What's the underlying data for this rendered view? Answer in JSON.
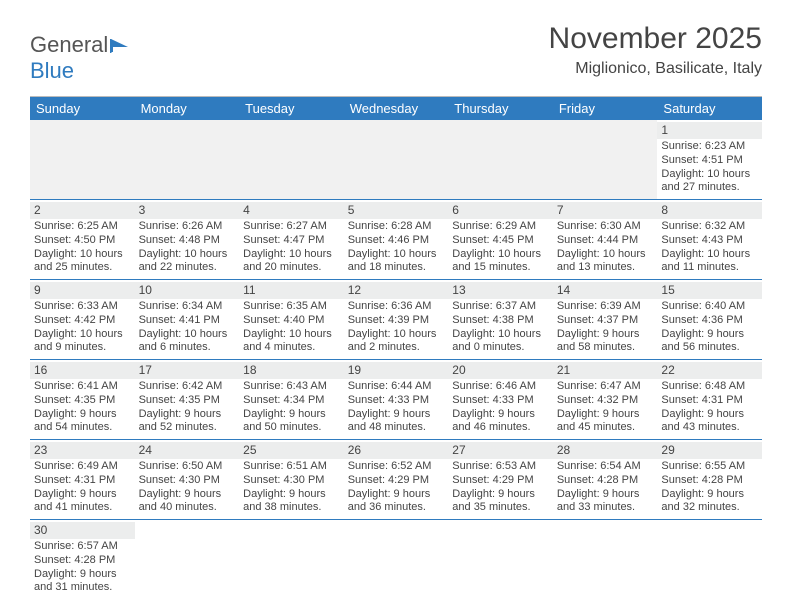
{
  "logo": {
    "text1": "General",
    "text2": "Blue"
  },
  "header": {
    "month_title": "November 2025",
    "location": "Miglionico, Basilicate, Italy"
  },
  "colors": {
    "header_bg": "#2f7bbf",
    "divider": "#2f7bbf",
    "cell_numbar": "#eceded",
    "blank_bg": "#f1f1f1"
  },
  "calendar": {
    "day_names": [
      "Sunday",
      "Monday",
      "Tuesday",
      "Wednesday",
      "Thursday",
      "Friday",
      "Saturday"
    ],
    "weeks": [
      [
        {
          "blank": true
        },
        {
          "blank": true
        },
        {
          "blank": true
        },
        {
          "blank": true
        },
        {
          "blank": true
        },
        {
          "blank": true
        },
        {
          "num": "1",
          "sunrise": "Sunrise: 6:23 AM",
          "sunset": "Sunset: 4:51 PM",
          "daylight1": "Daylight: 10 hours",
          "daylight2": "and 27 minutes."
        }
      ],
      [
        {
          "num": "2",
          "sunrise": "Sunrise: 6:25 AM",
          "sunset": "Sunset: 4:50 PM",
          "daylight1": "Daylight: 10 hours",
          "daylight2": "and 25 minutes."
        },
        {
          "num": "3",
          "sunrise": "Sunrise: 6:26 AM",
          "sunset": "Sunset: 4:48 PM",
          "daylight1": "Daylight: 10 hours",
          "daylight2": "and 22 minutes."
        },
        {
          "num": "4",
          "sunrise": "Sunrise: 6:27 AM",
          "sunset": "Sunset: 4:47 PM",
          "daylight1": "Daylight: 10 hours",
          "daylight2": "and 20 minutes."
        },
        {
          "num": "5",
          "sunrise": "Sunrise: 6:28 AM",
          "sunset": "Sunset: 4:46 PM",
          "daylight1": "Daylight: 10 hours",
          "daylight2": "and 18 minutes."
        },
        {
          "num": "6",
          "sunrise": "Sunrise: 6:29 AM",
          "sunset": "Sunset: 4:45 PM",
          "daylight1": "Daylight: 10 hours",
          "daylight2": "and 15 minutes."
        },
        {
          "num": "7",
          "sunrise": "Sunrise: 6:30 AM",
          "sunset": "Sunset: 4:44 PM",
          "daylight1": "Daylight: 10 hours",
          "daylight2": "and 13 minutes."
        },
        {
          "num": "8",
          "sunrise": "Sunrise: 6:32 AM",
          "sunset": "Sunset: 4:43 PM",
          "daylight1": "Daylight: 10 hours",
          "daylight2": "and 11 minutes."
        }
      ],
      [
        {
          "num": "9",
          "sunrise": "Sunrise: 6:33 AM",
          "sunset": "Sunset: 4:42 PM",
          "daylight1": "Daylight: 10 hours",
          "daylight2": "and 9 minutes."
        },
        {
          "num": "10",
          "sunrise": "Sunrise: 6:34 AM",
          "sunset": "Sunset: 4:41 PM",
          "daylight1": "Daylight: 10 hours",
          "daylight2": "and 6 minutes."
        },
        {
          "num": "11",
          "sunrise": "Sunrise: 6:35 AM",
          "sunset": "Sunset: 4:40 PM",
          "daylight1": "Daylight: 10 hours",
          "daylight2": "and 4 minutes."
        },
        {
          "num": "12",
          "sunrise": "Sunrise: 6:36 AM",
          "sunset": "Sunset: 4:39 PM",
          "daylight1": "Daylight: 10 hours",
          "daylight2": "and 2 minutes."
        },
        {
          "num": "13",
          "sunrise": "Sunrise: 6:37 AM",
          "sunset": "Sunset: 4:38 PM",
          "daylight1": "Daylight: 10 hours",
          "daylight2": "and 0 minutes."
        },
        {
          "num": "14",
          "sunrise": "Sunrise: 6:39 AM",
          "sunset": "Sunset: 4:37 PM",
          "daylight1": "Daylight: 9 hours",
          "daylight2": "and 58 minutes."
        },
        {
          "num": "15",
          "sunrise": "Sunrise: 6:40 AM",
          "sunset": "Sunset: 4:36 PM",
          "daylight1": "Daylight: 9 hours",
          "daylight2": "and 56 minutes."
        }
      ],
      [
        {
          "num": "16",
          "sunrise": "Sunrise: 6:41 AM",
          "sunset": "Sunset: 4:35 PM",
          "daylight1": "Daylight: 9 hours",
          "daylight2": "and 54 minutes."
        },
        {
          "num": "17",
          "sunrise": "Sunrise: 6:42 AM",
          "sunset": "Sunset: 4:35 PM",
          "daylight1": "Daylight: 9 hours",
          "daylight2": "and 52 minutes."
        },
        {
          "num": "18",
          "sunrise": "Sunrise: 6:43 AM",
          "sunset": "Sunset: 4:34 PM",
          "daylight1": "Daylight: 9 hours",
          "daylight2": "and 50 minutes."
        },
        {
          "num": "19",
          "sunrise": "Sunrise: 6:44 AM",
          "sunset": "Sunset: 4:33 PM",
          "daylight1": "Daylight: 9 hours",
          "daylight2": "and 48 minutes."
        },
        {
          "num": "20",
          "sunrise": "Sunrise: 6:46 AM",
          "sunset": "Sunset: 4:33 PM",
          "daylight1": "Daylight: 9 hours",
          "daylight2": "and 46 minutes."
        },
        {
          "num": "21",
          "sunrise": "Sunrise: 6:47 AM",
          "sunset": "Sunset: 4:32 PM",
          "daylight1": "Daylight: 9 hours",
          "daylight2": "and 45 minutes."
        },
        {
          "num": "22",
          "sunrise": "Sunrise: 6:48 AM",
          "sunset": "Sunset: 4:31 PM",
          "daylight1": "Daylight: 9 hours",
          "daylight2": "and 43 minutes."
        }
      ],
      [
        {
          "num": "23",
          "sunrise": "Sunrise: 6:49 AM",
          "sunset": "Sunset: 4:31 PM",
          "daylight1": "Daylight: 9 hours",
          "daylight2": "and 41 minutes."
        },
        {
          "num": "24",
          "sunrise": "Sunrise: 6:50 AM",
          "sunset": "Sunset: 4:30 PM",
          "daylight1": "Daylight: 9 hours",
          "daylight2": "and 40 minutes."
        },
        {
          "num": "25",
          "sunrise": "Sunrise: 6:51 AM",
          "sunset": "Sunset: 4:30 PM",
          "daylight1": "Daylight: 9 hours",
          "daylight2": "and 38 minutes."
        },
        {
          "num": "26",
          "sunrise": "Sunrise: 6:52 AM",
          "sunset": "Sunset: 4:29 PM",
          "daylight1": "Daylight: 9 hours",
          "daylight2": "and 36 minutes."
        },
        {
          "num": "27",
          "sunrise": "Sunrise: 6:53 AM",
          "sunset": "Sunset: 4:29 PM",
          "daylight1": "Daylight: 9 hours",
          "daylight2": "and 35 minutes."
        },
        {
          "num": "28",
          "sunrise": "Sunrise: 6:54 AM",
          "sunset": "Sunset: 4:28 PM",
          "daylight1": "Daylight: 9 hours",
          "daylight2": "and 33 minutes."
        },
        {
          "num": "29",
          "sunrise": "Sunrise: 6:55 AM",
          "sunset": "Sunset: 4:28 PM",
          "daylight1": "Daylight: 9 hours",
          "daylight2": "and 32 minutes."
        }
      ],
      [
        {
          "num": "30",
          "sunrise": "Sunrise: 6:57 AM",
          "sunset": "Sunset: 4:28 PM",
          "daylight1": "Daylight: 9 hours",
          "daylight2": "and 31 minutes."
        },
        {
          "blank": true
        },
        {
          "blank": true
        },
        {
          "blank": true
        },
        {
          "blank": true
        },
        {
          "blank": true
        },
        {
          "blank": true
        }
      ]
    ]
  }
}
